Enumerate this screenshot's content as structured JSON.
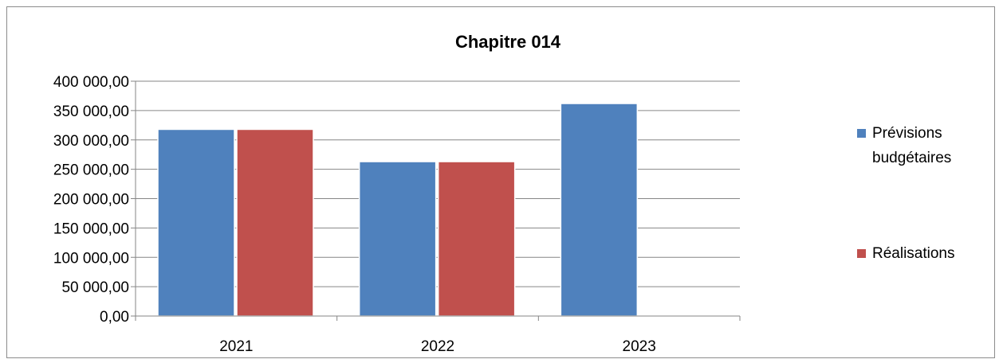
{
  "chart_data": {
    "type": "bar",
    "title": "Chapitre 014",
    "xlabel": "",
    "ylabel": "",
    "categories": [
      "2021",
      "2022",
      "2023"
    ],
    "series": [
      {
        "name": "Prévisions budgétaires",
        "name_lines": [
          "Prévisions",
          "budgétaires"
        ],
        "color": "#4f81bd",
        "values": [
          318000,
          263000,
          362000
        ]
      },
      {
        "name": "Réalisations",
        "name_lines": [
          "Réalisations"
        ],
        "color": "#c0504d",
        "values": [
          318000,
          263000,
          null
        ]
      }
    ],
    "ylim": [
      0,
      400000
    ],
    "yticks": [
      0,
      50000,
      100000,
      150000,
      200000,
      250000,
      300000,
      350000,
      400000
    ],
    "ytick_labels": [
      "0,00",
      "50 000,00",
      "100 000,00",
      "150 000,00",
      "200 000,00",
      "250 000,00",
      "300 000,00",
      "350 000,00",
      "400 000,00"
    ],
    "grid": true,
    "legend": "right"
  }
}
